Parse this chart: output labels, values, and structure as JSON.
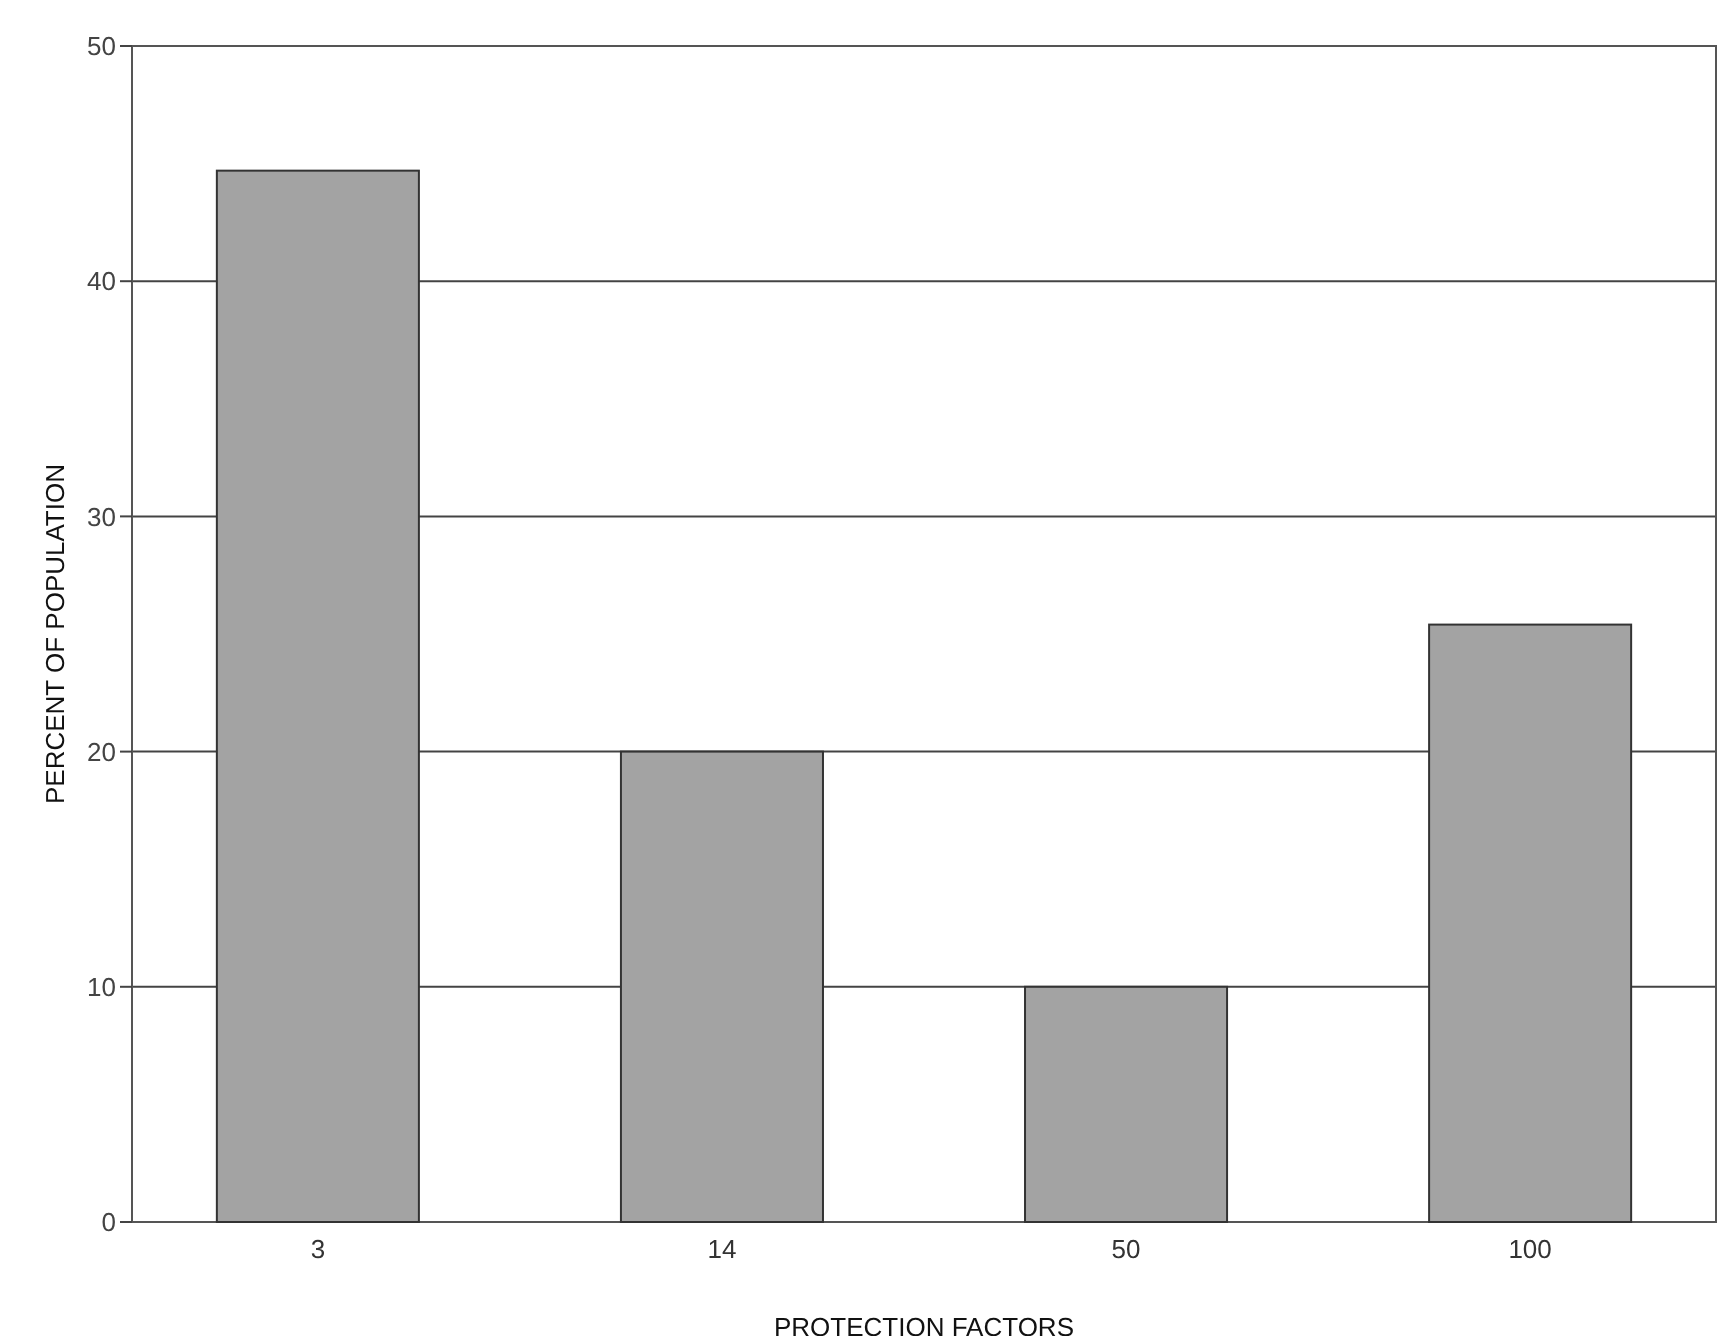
{
  "chart_data": {
    "type": "bar",
    "xlabel": "PROTECTION FACTORS",
    "ylabel": "PERCENT OF POPULATION",
    "categories": [
      "3",
      "14",
      "50",
      "100"
    ],
    "values": [
      44.7,
      20,
      10,
      25.4
    ],
    "color": "#a3a3a3",
    "ylim": [
      0,
      50
    ],
    "yticks": [
      0,
      10,
      20,
      30,
      40,
      50
    ],
    "grid": "y"
  }
}
